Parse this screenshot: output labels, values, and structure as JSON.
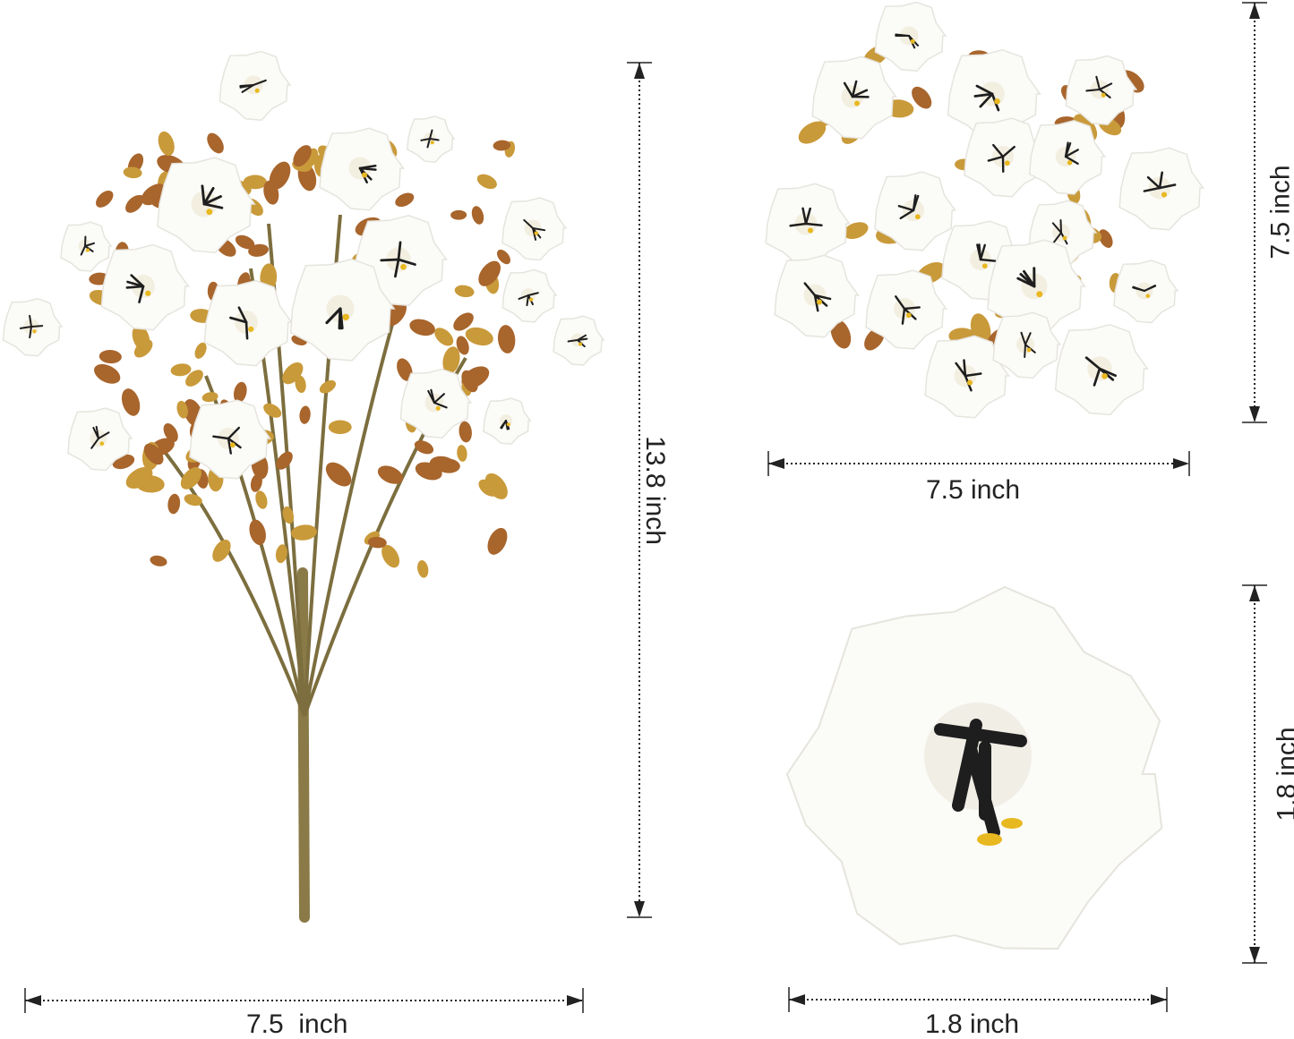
{
  "product": "white artificial flower bouquet",
  "colors": {
    "petal": "#fbfbf8",
    "petal_shade": "#e6e4dd",
    "stamen": "#1e1e1e",
    "pollen": "#e8b820",
    "leaf_gold": "#c99a3a",
    "leaf_brown": "#a8652c",
    "stem": "#7c6e3e",
    "dimension_line": "#222222"
  },
  "dimensions": {
    "bouquet_width": "7.5  inch",
    "bouquet_height": "13.8 inch",
    "cluster_width": "7.5 inch",
    "cluster_height": "7.5 inch",
    "flower_width": "1.8 inch",
    "flower_height": "1.8 inch"
  }
}
